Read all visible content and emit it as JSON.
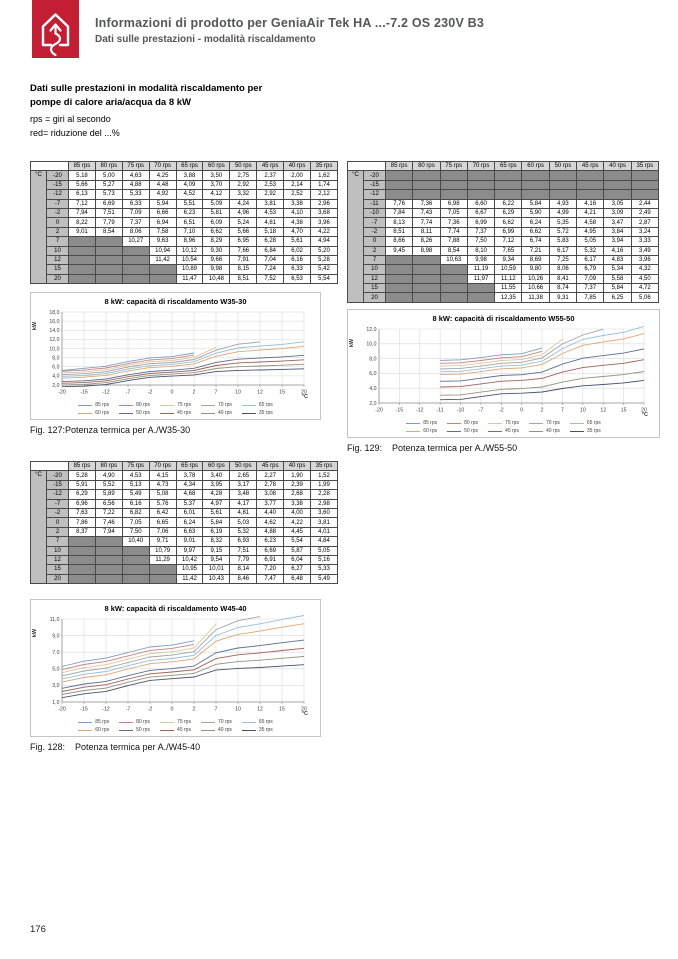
{
  "header": {
    "title": "Informazioni di prodotto per GeniaAir Tek HA ...-7.2 OS 230V B3",
    "subtitle": "Dati sulle prestazioni - modalità riscaldamento",
    "brand_color": "#c41e35"
  },
  "intro": {
    "heading": "Dati sulle prestazioni in modalità riscaldamento per\npompe di calore aria/acqua da 8 kW",
    "note_rps": "rps = giri al secondo",
    "note_red": "red= riduzione del ...%"
  },
  "page_number": "176",
  "series_colors": [
    "#7f9bc4",
    "#c9837c",
    "#d6c9a3",
    "#a3a3a3",
    "#96c0d7",
    "#dfa677",
    "#5b6e94",
    "#9e6258",
    "#95927b",
    "#46536f"
  ],
  "tables": [
    {
      "name": "table-w35-30",
      "corner": "°C",
      "chart": 0
    },
    {
      "name": "table-w55-50",
      "corner": "°C",
      "chart": 1
    },
    {
      "name": "table-w45-40",
      "corner": "°C",
      "chart": 2
    }
  ],
  "figures": [
    {
      "caption": "Fig. 127:Potenza termica per A./W35-30",
      "chart": 0
    },
    {
      "caption": "Fig. 129:    Potenza termica per A./W55-50",
      "chart": 1
    },
    {
      "caption": "Fig. 128:    Potenza termica per A./W45-40",
      "chart": 2
    }
  ],
  "chart_data": [
    {
      "type": "line",
      "title": "8 kW: capacità di riscaldamento W35-30",
      "xlabel": "°C",
      "ylabel": "kW",
      "categories": [
        -20,
        -15,
        -12,
        -7,
        -2,
        0,
        2,
        7,
        10,
        12,
        15,
        20
      ],
      "yticks": [
        2,
        4,
        6,
        8,
        10,
        12,
        14,
        16,
        18
      ],
      "ylim": [
        2,
        18
      ],
      "grid": true,
      "legend_position": "bottom",
      "series": [
        {
          "name": "85 rps",
          "values": [
            5.18,
            5.66,
            6.13,
            7.12,
            7.94,
            8.22,
            9.01,
            null,
            null,
            null,
            null,
            null
          ]
        },
        {
          "name": "80 rps",
          "values": [
            5.0,
            5.27,
            5.73,
            6.69,
            7.51,
            7.79,
            8.54,
            null,
            null,
            null,
            null,
            null
          ]
        },
        {
          "name": "75 rps",
          "values": [
            4.63,
            4.88,
            5.33,
            6.33,
            7.09,
            7.37,
            8.06,
            10.27,
            null,
            null,
            null,
            null
          ]
        },
        {
          "name": "70 rps",
          "values": [
            4.25,
            4.48,
            4.92,
            5.94,
            6.66,
            6.94,
            7.58,
            9.63,
            10.94,
            11.42,
            null,
            null
          ]
        },
        {
          "name": "65 rps",
          "values": [
            3.88,
            4.09,
            4.52,
            5.51,
            6.23,
            6.51,
            7.1,
            8.96,
            10.12,
            10.54,
            10.89,
            11.47
          ]
        },
        {
          "name": "60 rps",
          "values": [
            3.5,
            3.7,
            4.12,
            5.09,
            5.81,
            6.09,
            6.62,
            8.29,
            9.3,
            9.66,
            9.98,
            10.48
          ]
        },
        {
          "name": "50 rps",
          "values": [
            2.75,
            2.92,
            3.32,
            4.24,
            4.96,
            5.24,
            5.66,
            6.95,
            7.66,
            7.91,
            8.15,
            8.51
          ]
        },
        {
          "name": "45 rps",
          "values": [
            2.37,
            2.53,
            2.92,
            3.81,
            4.53,
            4.81,
            5.18,
            6.28,
            6.84,
            7.04,
            7.24,
            7.52
          ]
        },
        {
          "name": "40 rps",
          "values": [
            2.0,
            2.14,
            2.52,
            3.38,
            4.1,
            4.38,
            4.7,
            5.61,
            6.02,
            6.16,
            6.33,
            6.53
          ]
        },
        {
          "name": "35 rps",
          "values": [
            1.62,
            1.74,
            2.12,
            2.96,
            3.68,
            3.96,
            4.22,
            4.94,
            5.2,
            5.28,
            5.42,
            5.54
          ]
        }
      ]
    },
    {
      "type": "line",
      "title": "8 kW: capacità di riscaldamento W55-50",
      "xlabel": "°C",
      "ylabel": "kW",
      "categories": [
        -20,
        -15,
        -12,
        -11,
        -10,
        -7,
        -2,
        0,
        2,
        7,
        10,
        12,
        15,
        20
      ],
      "yticks": [
        2,
        4,
        6,
        8,
        10,
        12
      ],
      "ylim": [
        2,
        12
      ],
      "grid": true,
      "legend_position": "bottom",
      "series": [
        {
          "name": "85 rps",
          "values": [
            null,
            null,
            null,
            7.76,
            7.84,
            8.13,
            8.51,
            8.66,
            9.45,
            null,
            null,
            null,
            null,
            null
          ]
        },
        {
          "name": "80 rps",
          "values": [
            null,
            null,
            null,
            7.36,
            7.43,
            7.74,
            8.11,
            8.26,
            8.98,
            null,
            null,
            null,
            null,
            null
          ]
        },
        {
          "name": "75 rps",
          "values": [
            null,
            null,
            null,
            6.98,
            7.05,
            7.36,
            7.74,
            7.88,
            8.54,
            10.63,
            null,
            null,
            null,
            null
          ]
        },
        {
          "name": "70 rps",
          "values": [
            null,
            null,
            null,
            6.6,
            6.67,
            6.99,
            7.37,
            7.5,
            8.1,
            9.98,
            11.19,
            11.97,
            null,
            null
          ]
        },
        {
          "name": "65 rps",
          "values": [
            null,
            null,
            null,
            6.22,
            6.29,
            6.62,
            6.99,
            7.12,
            7.65,
            9.34,
            10.59,
            11.12,
            11.55,
            12.35
          ]
        },
        {
          "name": "60 rps",
          "values": [
            null,
            null,
            null,
            5.84,
            5.9,
            6.24,
            6.62,
            6.74,
            7.21,
            8.69,
            9.8,
            10.26,
            10.66,
            11.38
          ]
        },
        {
          "name": "50 rps",
          "values": [
            null,
            null,
            null,
            4.93,
            4.99,
            5.35,
            5.72,
            5.83,
            6.17,
            7.25,
            8.06,
            8.41,
            8.74,
            9.31
          ]
        },
        {
          "name": "45 rps",
          "values": [
            null,
            null,
            null,
            4.16,
            4.21,
            4.58,
            4.95,
            5.05,
            5.32,
            6.17,
            6.79,
            7.09,
            7.37,
            7.85
          ]
        },
        {
          "name": "40 rps",
          "values": [
            null,
            null,
            null,
            3.05,
            3.09,
            3.47,
            3.84,
            3.94,
            4.16,
            4.83,
            5.34,
            5.58,
            5.84,
            6.25
          ]
        },
        {
          "name": "35 rps",
          "values": [
            null,
            null,
            null,
            2.44,
            2.49,
            2.87,
            3.24,
            3.33,
            3.49,
            3.96,
            4.32,
            4.5,
            4.72,
            5.06
          ]
        }
      ]
    },
    {
      "type": "line",
      "title": "8 kW: capacità di riscaldamento W45-40",
      "xlabel": "°C",
      "ylabel": "kW",
      "categories": [
        -20,
        -15,
        -12,
        -7,
        -2,
        0,
        2,
        7,
        10,
        12,
        15,
        20
      ],
      "yticks": [
        1,
        3,
        5,
        7,
        9,
        11
      ],
      "ylim": [
        1,
        11
      ],
      "grid": true,
      "legend_position": "bottom",
      "series": [
        {
          "name": "85 rps",
          "values": [
            5.28,
            5.91,
            6.29,
            6.96,
            7.63,
            7.86,
            8.37,
            null,
            null,
            null,
            null,
            null
          ]
        },
        {
          "name": "80 rps",
          "values": [
            4.9,
            5.52,
            5.89,
            6.56,
            7.22,
            7.46,
            7.94,
            null,
            null,
            null,
            null,
            null
          ]
        },
        {
          "name": "75 rps",
          "values": [
            4.53,
            5.13,
            5.49,
            6.16,
            6.82,
            7.05,
            7.5,
            10.4,
            null,
            null,
            null,
            null
          ]
        },
        {
          "name": "70 rps",
          "values": [
            4.15,
            4.73,
            5.08,
            5.76,
            6.42,
            6.65,
            7.06,
            9.71,
            10.79,
            11.29,
            null,
            null
          ]
        },
        {
          "name": "65 rps",
          "values": [
            3.78,
            4.34,
            4.68,
            5.37,
            6.01,
            6.24,
            6.63,
            9.01,
            9.97,
            10.42,
            10.95,
            11.42
          ]
        },
        {
          "name": "60 rps",
          "values": [
            3.4,
            3.95,
            4.28,
            4.97,
            5.61,
            5.84,
            6.19,
            8.32,
            9.15,
            9.54,
            10.01,
            10.43
          ]
        },
        {
          "name": "50 rps",
          "values": [
            2.65,
            3.17,
            3.48,
            4.17,
            4.81,
            5.03,
            5.32,
            6.93,
            7.51,
            7.79,
            8.14,
            8.46
          ]
        },
        {
          "name": "45 rps",
          "values": [
            2.27,
            2.78,
            3.08,
            3.77,
            4.4,
            4.62,
            4.88,
            6.23,
            6.69,
            6.91,
            7.2,
            7.47
          ]
        },
        {
          "name": "40 rps",
          "values": [
            1.9,
            2.39,
            2.68,
            3.38,
            4.0,
            4.22,
            4.45,
            5.54,
            5.87,
            6.04,
            6.27,
            6.48
          ]
        },
        {
          "name": "35 rps",
          "values": [
            1.52,
            1.99,
            2.28,
            2.98,
            3.6,
            3.81,
            4.01,
            4.84,
            5.05,
            5.16,
            5.33,
            5.49
          ]
        }
      ]
    }
  ]
}
